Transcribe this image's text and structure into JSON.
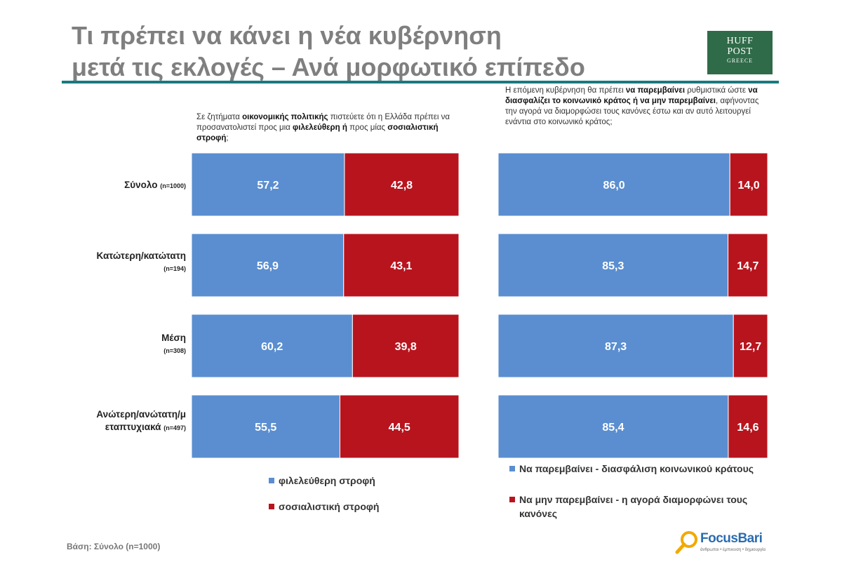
{
  "title_line1": "Τι πρέπει να κάνει η νέα κυβέρνηση",
  "title_line2": "μετά τις εκλογές – Ανά μορφωτικό επίπεδο",
  "logos": {
    "huffpost_line1": "HUFF",
    "huffpost_line2": "POST",
    "huffpost_line3": "GREECE",
    "focusbari_name": "FocusBari",
    "focusbari_tagline": "άνθρωποι • έμπνευση • δημιουργία"
  },
  "questions": {
    "left": {
      "p1": "Σε ζητήματα ",
      "b1": "οικονομικής πολιτικής",
      "p2": " πιστεύετε ότι η Ελλάδα πρέπει να προσανατολιστεί προς μια ",
      "b2": "φιλελεύθερη ή",
      "p3": " προς μίας ",
      "b3": "σοσιαλιστική στροφή",
      "p4": ";"
    },
    "right": {
      "p1": "Η επόμενη κυβέρνηση θα πρέπει ",
      "b1": "να παρεμβαίνει",
      "p2": " ρυθμιστικά ώστε ",
      "b2": "να διασφαλίζει το κοινωνικό κράτος ή να μην παρεμβαίνει",
      "p3": ", αφήνοντας την αγορά να διαμορφώσει τους κανόνες έστω και αν αυτό λειτουργεί ενάντια στο κοινωνικό κράτος;"
    }
  },
  "rows": [
    {
      "label": "Σύνολο",
      "n": "(n=1000)"
    },
    {
      "label": "Κατώτερη/κατώτατη",
      "n": "(n=194)"
    },
    {
      "label": "Μέση",
      "n": "(n=308)"
    },
    {
      "label": "Ανώτερη/ανώτατη/μεταπτυχιακά",
      "label_line1": "Ανώτερη/ανώτατη/μ",
      "label_line2": "εταπτυχιακά",
      "n": "(n=497)"
    }
  ],
  "legend": {
    "left": [
      "φιλελεύθερη στροφή",
      "σοσιαλιστική στροφή"
    ],
    "right": [
      "Να παρεμβαίνει - διασφάλιση κοινωνικού κράτους",
      "Να μην παρεμβαίνει - η αγορά διαμορφώνει τους κανόνες"
    ]
  },
  "colors": {
    "blue": "#5a8ed0",
    "red": "#b8141e",
    "title": "#7f7f7f",
    "rule": "#1a7a7e",
    "huffpost_bg": "#2f6b48"
  },
  "footer": "Βάση: Σύνολο (n=1000)",
  "chart_data": [
    {
      "type": "bar",
      "orientation": "horizontal",
      "stacked": "100%",
      "categories": [
        "Σύνολο (n=1000)",
        "Κατώτερη/κατώτατη (n=194)",
        "Μέση (n=308)",
        "Ανώτερη/ανώτατη/μεταπτυχιακά (n=497)"
      ],
      "series": [
        {
          "name": "φιλελεύθερη στροφή",
          "color": "#5a8ed0",
          "values": [
            57.2,
            56.9,
            60.2,
            55.5
          ],
          "labels": [
            "57,2",
            "56,9",
            "60,2",
            "55,5"
          ]
        },
        {
          "name": "σοσιαλιστική στροφή",
          "color": "#b8141e",
          "values": [
            42.8,
            43.1,
            39.8,
            44.5
          ],
          "labels": [
            "42,8",
            "43,1",
            "39,8",
            "44,5"
          ]
        }
      ],
      "xlim": [
        0,
        100
      ]
    },
    {
      "type": "bar",
      "orientation": "horizontal",
      "stacked": "100%",
      "categories": [
        "Σύνολο (n=1000)",
        "Κατώτερη/κατώτατη (n=194)",
        "Μέση (n=308)",
        "Ανώτερη/ανώτατη/μεταπτυχιακά (n=497)"
      ],
      "series": [
        {
          "name": "Να παρεμβαίνει - διασφάλιση κοινωνικού κράτους",
          "color": "#5a8ed0",
          "values": [
            86.0,
            85.3,
            87.3,
            85.4
          ],
          "labels": [
            "86,0",
            "85,3",
            "87,3",
            "85,4"
          ]
        },
        {
          "name": "Να μην παρεμβαίνει - η αγορά διαμορφώνει τους κανόνες",
          "color": "#b8141e",
          "values": [
            14.0,
            14.7,
            12.7,
            14.6
          ],
          "labels": [
            "14,0",
            "14,7",
            "12,7",
            "14,6"
          ]
        }
      ],
      "xlim": [
        0,
        100
      ]
    }
  ]
}
